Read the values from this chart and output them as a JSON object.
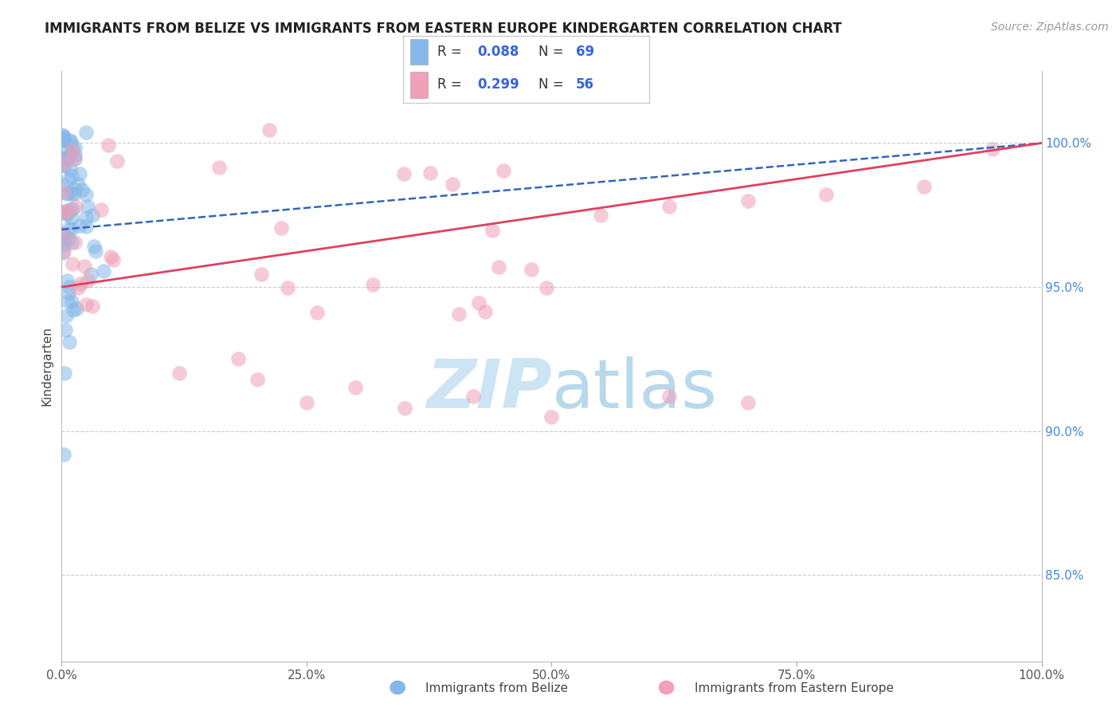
{
  "title": "IMMIGRANTS FROM BELIZE VS IMMIGRANTS FROM EASTERN EUROPE KINDERGARTEN CORRELATION CHART",
  "source_text": "Source: ZipAtlas.com",
  "ylabel": "Kindergarten",
  "legend_belize": "Immigrants from Belize",
  "legend_eastern": "Immigrants from Eastern Europe",
  "R_belize": 0.088,
  "N_belize": 69,
  "R_eastern": 0.299,
  "N_eastern": 56,
  "color_belize": "#85b8e8",
  "color_eastern": "#f0a0b8",
  "color_belize_line": "#3366bb",
  "color_eastern_line": "#e04060",
  "right_yticks": [
    0.85,
    0.9,
    0.95,
    1.0
  ],
  "right_yticklabels": [
    "85.0%",
    "90.0%",
    "95.0%",
    "100.0%"
  ],
  "xlim": [
    0.0,
    1.0
  ],
  "ylim": [
    0.82,
    1.025
  ],
  "grid_color": "#cccccc",
  "background_color": "#ffffff",
  "title_color": "#222222",
  "source_color": "#999999",
  "right_tick_color": "#4488dd",
  "watermark_color": "#cce4f4",
  "legend_text_color": "#000000",
  "legend_value_color": "#3366dd"
}
